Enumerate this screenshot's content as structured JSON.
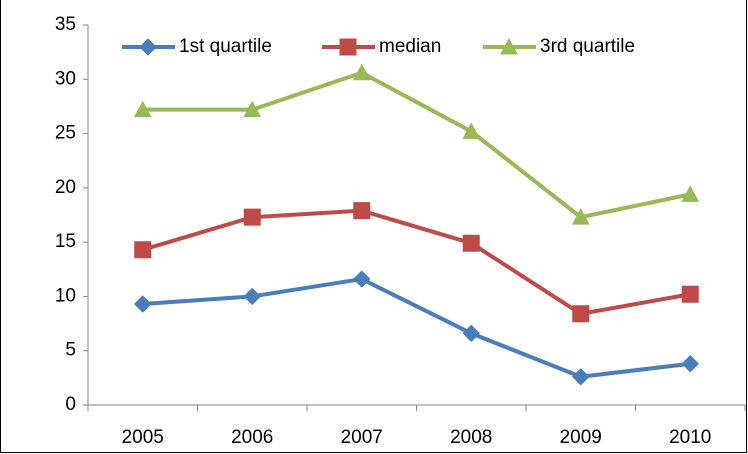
{
  "chart_data": {
    "type": "line",
    "categories": [
      "2005",
      "2006",
      "2007",
      "2008",
      "2009",
      "2010"
    ],
    "series": [
      {
        "name": "1st quartile",
        "color": "#4a7ebb",
        "marker": "diamond",
        "values": [
          9.3,
          10.0,
          11.6,
          6.6,
          2.6,
          3.8
        ]
      },
      {
        "name": "median",
        "color": "#be4b48",
        "marker": "square",
        "values": [
          14.3,
          17.3,
          17.9,
          14.9,
          8.4,
          10.2
        ]
      },
      {
        "name": "3rd quartile",
        "color": "#98b954",
        "marker": "triangle",
        "values": [
          27.2,
          27.2,
          30.6,
          25.2,
          17.3,
          19.4
        ]
      }
    ],
    "ylim": [
      0,
      35
    ],
    "yticks": [
      0,
      5,
      10,
      15,
      20,
      25,
      30,
      35
    ],
    "grid": false,
    "legend": "top"
  }
}
